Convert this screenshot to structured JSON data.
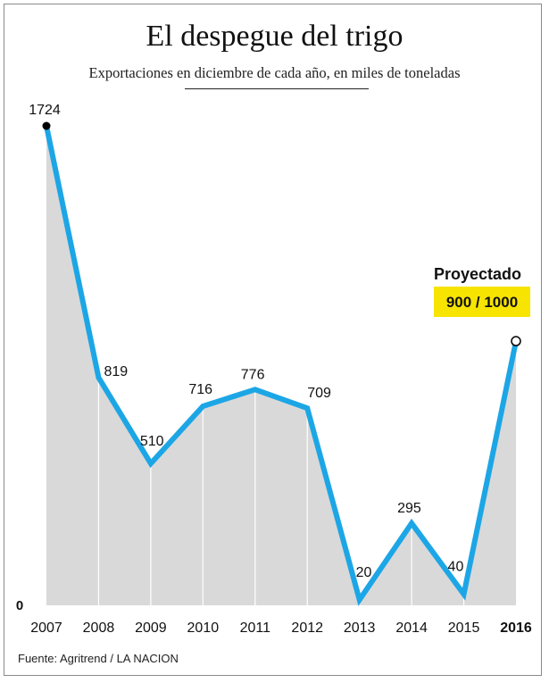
{
  "chart_data": {
    "type": "area",
    "title": "El despegue del trigo",
    "subtitle": "Exportaciones en diciembre de cada año, en miles de toneladas",
    "categories": [
      "2007",
      "2008",
      "2009",
      "2010",
      "2011",
      "2012",
      "2013",
      "2014",
      "2015",
      "2016"
    ],
    "series": [
      {
        "values": [
          1724,
          819,
          510,
          716,
          776,
          709,
          20,
          295,
          40,
          950
        ]
      }
    ],
    "data_labels": [
      "1724",
      "819",
      "510",
      "716",
      "776",
      "709",
      "20",
      "295",
      "40",
      ""
    ],
    "highlighted_category": "2016",
    "y_axis_label_zero": "0",
    "ylim": [
      0,
      1724
    ],
    "grid": "vertical",
    "annotation": {
      "heading": "Proyectado",
      "value_label": "900 / 1000",
      "highlight_color": "#f7e400"
    },
    "colors": {
      "line": "#1ca6e6",
      "area": "#d9d9d9",
      "gridline": "#ffffff",
      "marker_start": "#000000",
      "marker_end_fill": "#ffffff"
    },
    "source": "Fuente: Agritrend / LA NACION"
  }
}
